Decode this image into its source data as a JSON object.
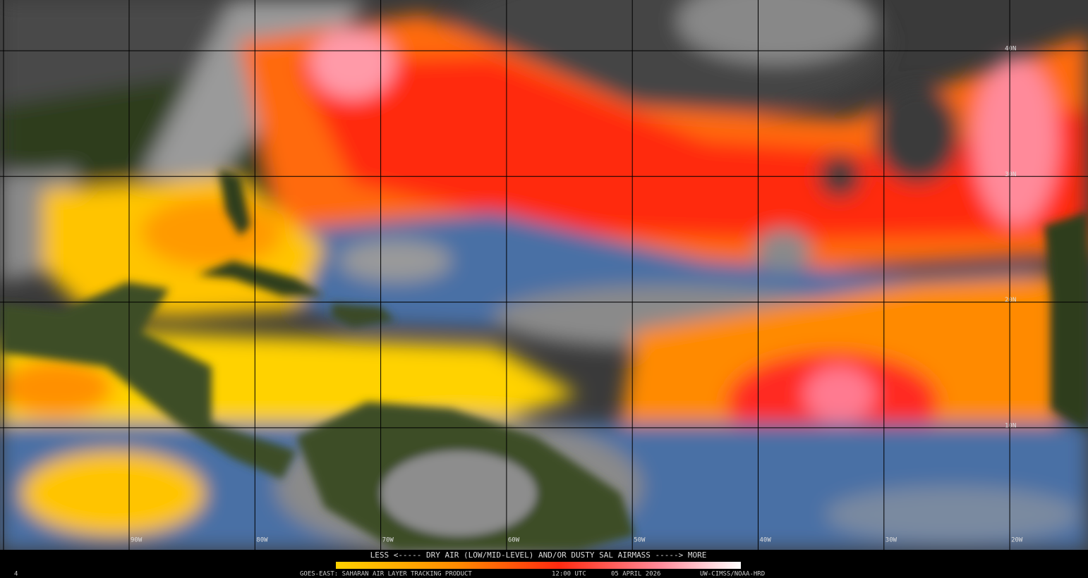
{
  "grid": {
    "lat_labels": [
      "40N",
      "30N",
      "20N",
      "10N"
    ],
    "lon_labels": [
      "90W",
      "80W",
      "70W",
      "60W",
      "50W",
      "40W",
      "30W",
      "20W"
    ]
  },
  "legend": {
    "caption": "LESS <----- DRY AIR (LOW/MID-LEVEL) AND/OR DUSTY SAL AIRMASS -----> MORE"
  },
  "footer": {
    "product": "GOES-EAST: SAHARAN AIR LAYER TRACKING PRODUCT",
    "time": "12:00 UTC",
    "date": "05 APRIL 2026",
    "credit": "UW-CIMSS/NOAA-HRD"
  },
  "corner_label": "4"
}
